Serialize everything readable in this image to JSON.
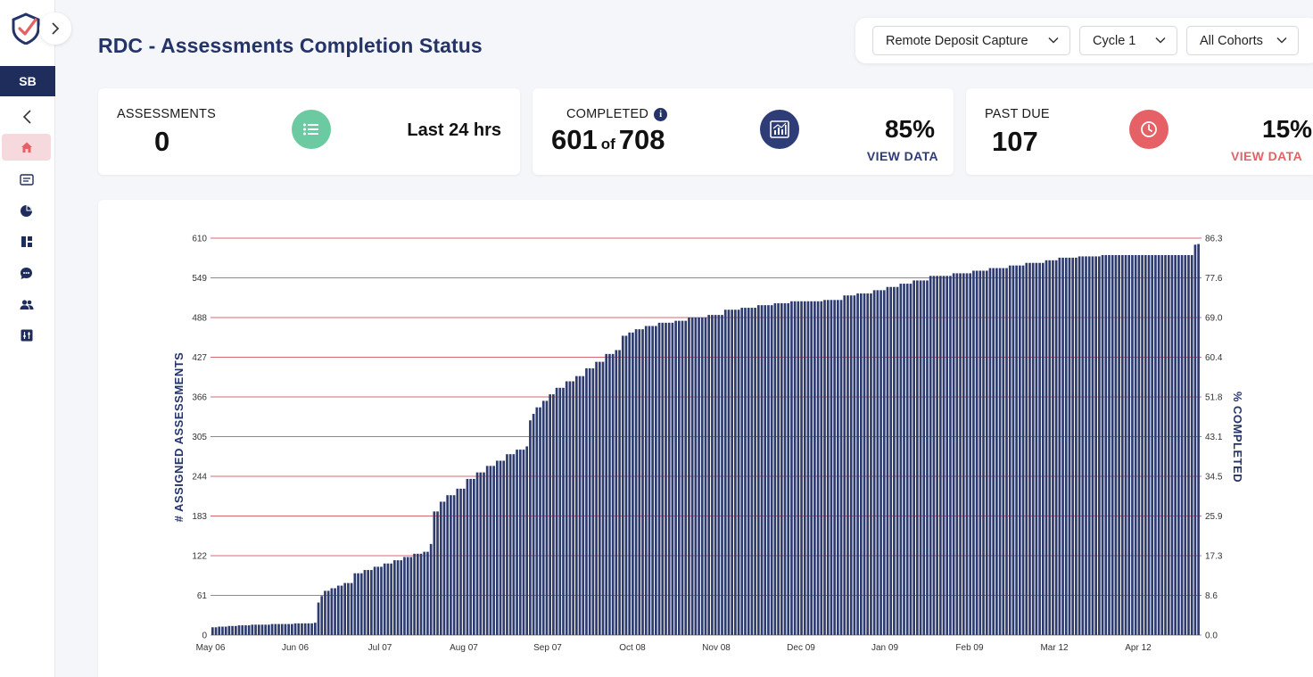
{
  "header": {
    "title": "RDC - Assessments Completion Status"
  },
  "sidebar": {
    "user_initials": "SB",
    "icons": [
      "home-icon",
      "list-icon",
      "pie-chart-icon",
      "dashboard-icon",
      "chat-icon",
      "users-icon",
      "settings-icon"
    ]
  },
  "filters": {
    "program": "Remote Deposit Capture",
    "cycle": "Cycle 1",
    "cohort": "All Cohorts"
  },
  "cards": {
    "assessments": {
      "label": "ASSESSMENTS",
      "value": "0",
      "right": "Last 24 hrs",
      "icon_color": "#6ccaa2"
    },
    "completed": {
      "label": "COMPLETED",
      "value": "601",
      "of": "of",
      "total": "708",
      "percent": "85%",
      "link": "VIEW DATA",
      "icon_color": "#2e3d78"
    },
    "past_due": {
      "label": "PAST DUE",
      "value": "107",
      "percent": "15%",
      "link": "VIEW DATA",
      "icon_color": "#e56166"
    }
  },
  "colors": {
    "accent": "#253468",
    "bar": "#2e3b6e",
    "grid": "#d86870",
    "danger": "#e56166"
  },
  "chart_data": {
    "type": "bar",
    "ylabel": "# ASSIGNED ASSESSMENTS",
    "y2label": "% COMPLETED",
    "ylim": [
      0,
      610
    ],
    "y2lim": [
      0,
      86.3
    ],
    "y_ticks": [
      "0",
      "61",
      "122",
      "183",
      "244",
      "305",
      "366",
      "427",
      "488",
      "549",
      "610"
    ],
    "y2_ticks": [
      "0.0",
      "8.6",
      "17.3",
      "25.9",
      "34.5",
      "43.1",
      "51.8",
      "60.4",
      "69.0",
      "77.6",
      "86.3"
    ],
    "x_ticks": [
      "May 06",
      "Jun 06",
      "Jul 07",
      "Aug 07",
      "Sep 07",
      "Oct 08",
      "Nov 08",
      "Dec 09",
      "Jan 09",
      "Feb 09",
      "Mar 12",
      "Apr 12"
    ],
    "grid": true,
    "series": [
      {
        "values": [
          [
            0,
            12
          ],
          [
            2,
            13
          ],
          [
            5,
            14
          ],
          [
            8,
            15
          ],
          [
            12,
            16
          ],
          [
            18,
            17
          ],
          [
            25,
            18
          ],
          [
            31,
            19
          ],
          [
            32,
            50
          ],
          [
            33,
            60
          ],
          [
            34,
            68
          ],
          [
            36,
            72
          ],
          [
            38,
            76
          ],
          [
            40,
            80
          ],
          [
            43,
            95
          ],
          [
            46,
            100
          ],
          [
            49,
            105
          ],
          [
            52,
            110
          ],
          [
            55,
            115
          ],
          [
            58,
            120
          ],
          [
            61,
            125
          ],
          [
            64,
            128
          ],
          [
            66,
            140
          ],
          [
            67,
            190
          ],
          [
            69,
            205
          ],
          [
            71,
            215
          ],
          [
            74,
            225
          ],
          [
            77,
            240
          ],
          [
            80,
            250
          ],
          [
            83,
            260
          ],
          [
            86,
            268
          ],
          [
            89,
            278
          ],
          [
            92,
            285
          ],
          [
            95,
            290
          ],
          [
            96,
            330
          ],
          [
            97,
            340
          ],
          [
            98,
            350
          ],
          [
            100,
            360
          ],
          [
            102,
            370
          ],
          [
            104,
            380
          ],
          [
            107,
            390
          ],
          [
            110,
            398
          ],
          [
            113,
            410
          ],
          [
            116,
            420
          ],
          [
            119,
            432
          ],
          [
            122,
            438
          ],
          [
            124,
            460
          ],
          [
            126,
            465
          ],
          [
            128,
            470
          ],
          [
            131,
            475
          ],
          [
            135,
            480
          ],
          [
            140,
            483
          ],
          [
            144,
            488
          ],
          [
            150,
            492
          ],
          [
            155,
            500
          ],
          [
            160,
            503
          ],
          [
            165,
            507
          ],
          [
            170,
            510
          ],
          [
            175,
            513
          ],
          [
            185,
            515
          ],
          [
            191,
            522
          ],
          [
            195,
            525
          ],
          [
            200,
            530
          ],
          [
            204,
            535
          ],
          [
            208,
            540
          ],
          [
            212,
            545
          ],
          [
            217,
            552
          ],
          [
            224,
            556
          ],
          [
            230,
            560
          ],
          [
            235,
            564
          ],
          [
            241,
            568
          ],
          [
            246,
            572
          ],
          [
            252,
            576
          ],
          [
            256,
            580
          ],
          [
            262,
            582
          ],
          [
            269,
            584
          ],
          [
            270,
            584
          ],
          [
            283,
            584
          ],
          [
            289,
            584
          ],
          [
            294,
            584
          ],
          [
            297,
            600
          ],
          [
            298,
            601
          ]
        ]
      }
    ]
  }
}
